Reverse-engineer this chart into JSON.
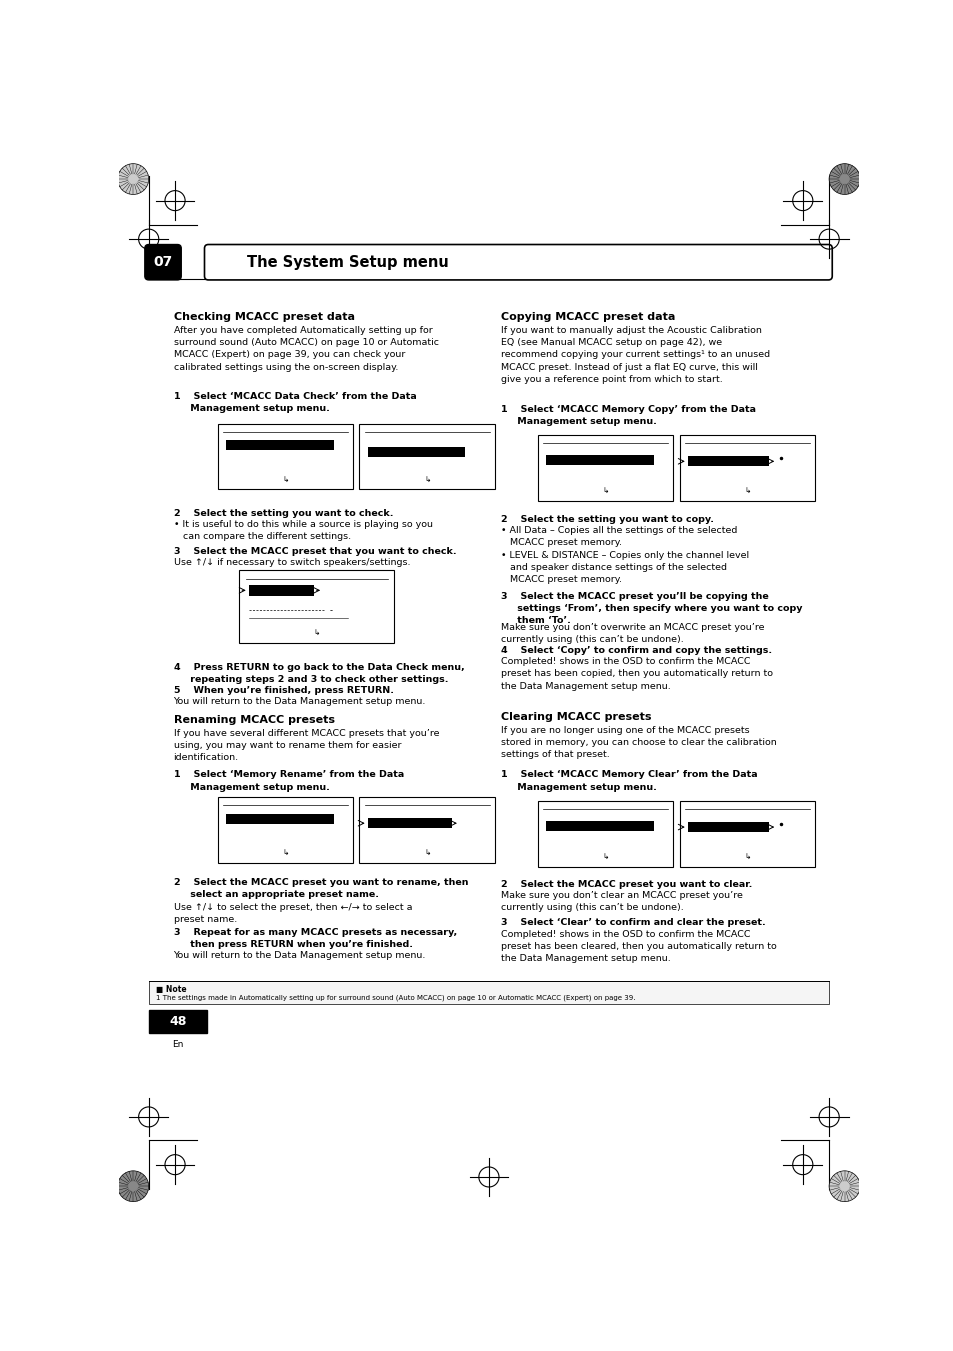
{
  "page_bg": "#ffffff",
  "page_width": 9.54,
  "page_height": 13.51,
  "header_text": "The System Setup menu",
  "header_number": "07",
  "section1_title": "Checking MCACC preset data",
  "section2_title": "Renaming MCACC presets",
  "section3_title": "Copying MCACC preset data",
  "section4_title": "Clearing MCACC presets",
  "page_number": "48",
  "page_lang": "En"
}
